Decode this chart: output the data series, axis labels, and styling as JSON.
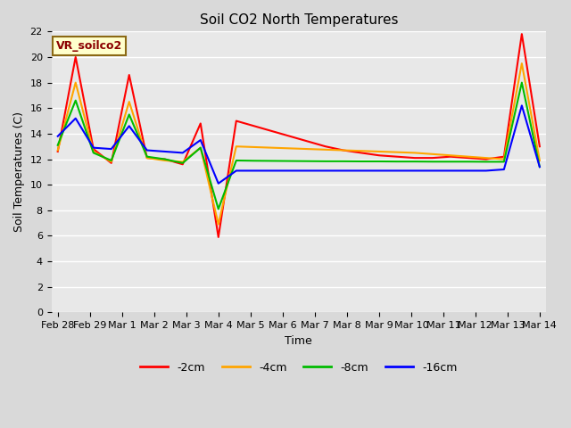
{
  "title": "Soil CO2 North Temperatures",
  "xlabel": "Time",
  "ylabel": "Soil Temperatures (C)",
  "annotation": "VR_soilco2",
  "ylim": [
    0,
    22
  ],
  "yticks": [
    0,
    2,
    4,
    6,
    8,
    10,
    12,
    14,
    16,
    18,
    20,
    22
  ],
  "x_labels": [
    "Feb 28",
    "Feb 29",
    "Mar 1",
    "Mar 2",
    "Mar 3",
    "Mar 4",
    "Mar 5",
    "Mar 6",
    "Mar 7",
    "Mar 8",
    "Mar 9",
    "Mar 10",
    "Mar 11",
    "Mar 12",
    "Mar 13",
    "Mar 14"
  ],
  "series": {
    "-2cm": {
      "color": "#ff0000",
      "values": [
        12.6,
        20.0,
        12.8,
        11.7,
        18.6,
        12.1,
        12.0,
        11.6,
        14.8,
        5.9,
        15.0,
        14.6,
        14.2,
        13.8,
        13.4,
        13.0,
        12.7,
        12.5,
        12.3,
        12.2,
        12.1,
        12.1,
        12.2,
        12.1,
        12.0,
        12.2,
        21.8,
        13.0
      ]
    },
    "-4cm": {
      "color": "#ffa500",
      "values": [
        12.7,
        18.0,
        12.6,
        11.8,
        16.5,
        12.1,
        11.9,
        11.8,
        12.9,
        6.9,
        13.0,
        12.95,
        12.9,
        12.85,
        12.8,
        12.75,
        12.7,
        12.65,
        12.6,
        12.55,
        12.5,
        12.4,
        12.3,
        12.2,
        12.1,
        12.0,
        19.5,
        11.9
      ]
    },
    "-8cm": {
      "color": "#00bb00",
      "values": [
        13.1,
        16.6,
        12.5,
        11.9,
        15.5,
        12.2,
        12.0,
        11.7,
        12.9,
        8.1,
        11.9,
        11.88,
        11.87,
        11.86,
        11.85,
        11.84,
        11.84,
        11.83,
        11.83,
        11.82,
        11.82,
        11.81,
        11.81,
        11.81,
        11.8,
        11.8,
        18.0,
        11.4
      ]
    },
    "-16cm": {
      "color": "#0000ff",
      "values": [
        13.8,
        15.2,
        12.9,
        12.8,
        14.6,
        12.7,
        12.6,
        12.5,
        13.5,
        10.1,
        11.1,
        11.1,
        11.1,
        11.1,
        11.1,
        11.1,
        11.1,
        11.1,
        11.1,
        11.1,
        11.1,
        11.1,
        11.1,
        11.1,
        11.1,
        11.2,
        16.2,
        11.4
      ]
    }
  },
  "bg_color": "#d9d9d9",
  "plot_bg_color": "#e8e8e8",
  "grid_color": "#ffffff",
  "title_fontsize": 11,
  "axis_label_fontsize": 9,
  "tick_fontsize": 8,
  "legend_fontsize": 9,
  "linewidth": 1.5
}
